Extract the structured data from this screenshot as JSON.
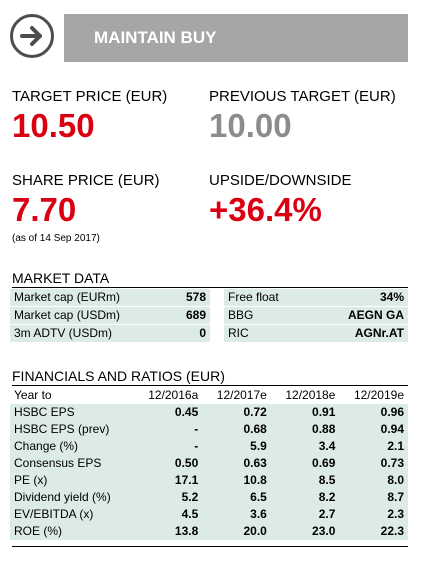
{
  "rating": "MAINTAIN BUY",
  "target_price": {
    "label": "TARGET PRICE (EUR)",
    "value": "10.50"
  },
  "previous_target": {
    "label": "PREVIOUS TARGET (EUR)",
    "value": "10.00"
  },
  "share_price": {
    "label": "SHARE PRICE (EUR)",
    "value": "7.70",
    "note": "(as of 14 Sep 2017)"
  },
  "upside": {
    "label": "UPSIDE/DOWNSIDE",
    "value": "+36.4%"
  },
  "market_data": {
    "title": "MARKET DATA",
    "left": [
      {
        "label": "Market cap (EURm)",
        "value": "578"
      },
      {
        "label": "Market cap (USDm)",
        "value": "689"
      },
      {
        "label": "3m ADTV (USDm)",
        "value": "0"
      }
    ],
    "right": [
      {
        "label": "Free float",
        "value": "34%"
      },
      {
        "label": "BBG",
        "value": "AEGN GA"
      },
      {
        "label": "RIC",
        "value": "AGNr.AT"
      }
    ]
  },
  "financials": {
    "title": "FINANCIALS AND RATIOS (EUR)",
    "headers": [
      "Year to",
      "12/2016a",
      "12/2017e",
      "12/2018e",
      "12/2019e"
    ],
    "rows": [
      {
        "label": "HSBC EPS",
        "values": [
          "0.45",
          "0.72",
          "0.91",
          "0.96"
        ]
      },
      {
        "label": "HSBC EPS (prev)",
        "values": [
          "-",
          "0.68",
          "0.88",
          "0.94"
        ]
      },
      {
        "label": "Change (%)",
        "values": [
          "-",
          "5.9",
          "3.4",
          "2.1"
        ]
      },
      {
        "label": "Consensus EPS",
        "values": [
          "0.50",
          "0.63",
          "0.69",
          "0.73"
        ]
      },
      {
        "label": "PE (x)",
        "values": [
          "17.1",
          "10.8",
          "8.5",
          "8.0"
        ]
      },
      {
        "label": "Dividend yield (%)",
        "values": [
          "5.2",
          "6.5",
          "8.2",
          "8.7"
        ]
      },
      {
        "label": "EV/EBITDA (x)",
        "values": [
          "4.5",
          "3.6",
          "2.7",
          "2.3"
        ]
      },
      {
        "label": "ROE (%)",
        "values": [
          "13.8",
          "20.0",
          "23.0",
          "22.3"
        ]
      }
    ]
  },
  "colors": {
    "accent_red": "#db0011",
    "grey_value": "#8c8c8c",
    "banner_grey": "#a6a6a6",
    "row_shade": "#dcebe4"
  },
  "icons": {
    "rating_icon": "arrow-right-circle-icon"
  }
}
